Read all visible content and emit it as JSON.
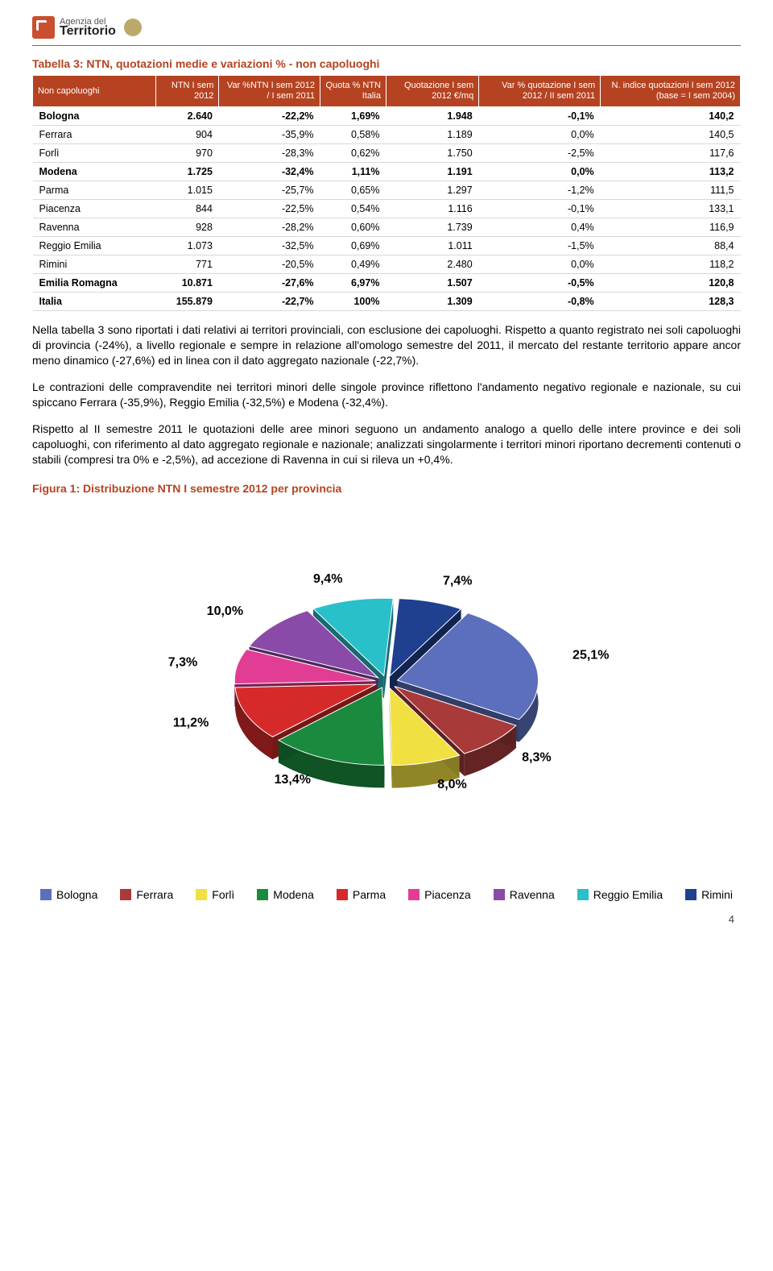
{
  "logo": {
    "small": "Agenzia del",
    "big": "Territorio"
  },
  "table_title": "Tabella 3: NTN, quotazioni medie e variazioni % - non capoluoghi",
  "columns": [
    "Non capoluoghi",
    "NTN I sem 2012",
    "Var %NTN I sem 2012 / I sem 2011",
    "Quota % NTN Italia",
    "Quotazione I sem 2012 €/mq",
    "Var % quotazione I sem 2012 / II sem 2011",
    "N. indice quotazioni I sem 2012 (base = I sem 2004)"
  ],
  "rows": [
    {
      "bold": true,
      "c": [
        "Bologna",
        "2.640",
        "-22,2%",
        "1,69%",
        "1.948",
        "-0,1%",
        "140,2"
      ]
    },
    {
      "bold": false,
      "c": [
        "Ferrara",
        "904",
        "-35,9%",
        "0,58%",
        "1.189",
        "0,0%",
        "140,5"
      ]
    },
    {
      "bold": false,
      "c": [
        "Forlì",
        "970",
        "-28,3%",
        "0,62%",
        "1.750",
        "-2,5%",
        "117,6"
      ]
    },
    {
      "bold": true,
      "c": [
        "Modena",
        "1.725",
        "-32,4%",
        "1,11%",
        "1.191",
        "0,0%",
        "113,2"
      ]
    },
    {
      "bold": false,
      "c": [
        "Parma",
        "1.015",
        "-25,7%",
        "0,65%",
        "1.297",
        "-1,2%",
        "111,5"
      ]
    },
    {
      "bold": false,
      "c": [
        "Piacenza",
        "844",
        "-22,5%",
        "0,54%",
        "1.116",
        "-0,1%",
        "133,1"
      ]
    },
    {
      "bold": false,
      "c": [
        "Ravenna",
        "928",
        "-28,2%",
        "0,60%",
        "1.739",
        "0,4%",
        "116,9"
      ]
    },
    {
      "bold": false,
      "c": [
        "Reggio Emilia",
        "1.073",
        "-32,5%",
        "0,69%",
        "1.011",
        "-1,5%",
        "88,4"
      ]
    },
    {
      "bold": false,
      "c": [
        "Rimini",
        "771",
        "-20,5%",
        "0,49%",
        "2.480",
        "0,0%",
        "118,2"
      ]
    },
    {
      "bold": true,
      "sep": true,
      "c": [
        "Emilia Romagna",
        "10.871",
        "-27,6%",
        "6,97%",
        "1.507",
        "-0,5%",
        "120,8"
      ]
    },
    {
      "bold": true,
      "c": [
        "Italia",
        "155.879",
        "-22,7%",
        "100%",
        "1.309",
        "-0,8%",
        "128,3"
      ]
    }
  ],
  "paragraphs": [
    "Nella tabella 3 sono riportati i dati relativi ai territori provinciali, con esclusione dei capoluoghi. Rispetto a quanto registrato nei soli capoluoghi di provincia (-24%), a livello regionale e sempre in relazione all'omologo semestre del 2011, il mercato del restante territorio appare ancor meno dinamico (-27,6%) ed in linea con il dato aggregato nazionale (-22,7%).",
    "Le contrazioni delle compravendite nei territori minori delle singole province riflettono l'andamento negativo regionale e nazionale, su cui spiccano Ferrara (-35,9%), Reggio Emilia (-32,5%) e Modena (-32,4%).",
    "Rispetto al II semestre 2011 le quotazioni delle aree minori seguono un andamento analogo a quello delle intere province e dei soli capoluoghi, con riferimento al dato aggregato regionale e nazionale; analizzati singolarmente i territori minori riportano decrementi contenuti o stabili (compresi tra 0% e -2,5%), ad accezione di Ravenna in cui si rileva un +0,4%."
  ],
  "figure_title": "Figura 1: Distribuzione NTN I semestre 2012 per provincia",
  "pie": {
    "size": 520,
    "radius": 175,
    "tilt": 0.55,
    "depth": 28,
    "explode": 14,
    "label_offset": 50,
    "start_angle": -60,
    "label_fontsize": 16,
    "label_weight": "bold",
    "slices": [
      {
        "label": "Bologna",
        "pct": 25.1,
        "display": "25,1%",
        "color": "#5b6fbd"
      },
      {
        "label": "Ferrara",
        "pct": 8.3,
        "display": "8,3%",
        "color": "#a93a3a"
      },
      {
        "label": "Forlì",
        "pct": 8.0,
        "display": "8,0%",
        "color": "#f1e041"
      },
      {
        "label": "Modena",
        "pct": 13.4,
        "display": "13,4%",
        "color": "#1a8a3e"
      },
      {
        "label": "Parma",
        "pct": 11.2,
        "display": "11,2%",
        "color": "#d62a2a"
      },
      {
        "label": "Piacenza",
        "pct": 7.3,
        "display": "7,3%",
        "color": "#e23d94"
      },
      {
        "label": "Ravenna",
        "pct": 10.0,
        "display": "10,0%",
        "color": "#8a4aa8"
      },
      {
        "label": "Reggio Emilia",
        "pct": 9.4,
        "display": "9,4%",
        "color": "#29c0c9"
      },
      {
        "label": "Rimini",
        "pct": 7.4,
        "display": "7,4%",
        "color": "#1f3f8f"
      }
    ]
  },
  "page_number": "4"
}
